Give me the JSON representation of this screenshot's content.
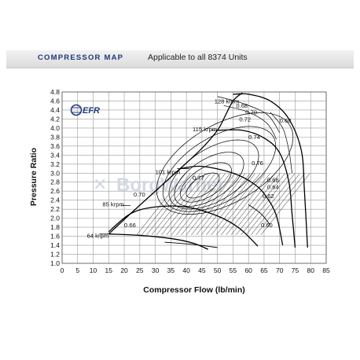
{
  "header": {
    "title": "COMPRESSOR MAP",
    "subtitle": "Applicable to all 8374 Units"
  },
  "icons": {
    "logo": "efr-logo",
    "watermark": "borgwarner-watermark"
  },
  "logo_text": "EFR",
  "watermark_text": "BorgWarner",
  "colors": {
    "title": "#1e3a78",
    "line": "#000000",
    "grid": "#9a9a9a",
    "watermark": "#d4d9e1"
  },
  "chart_data": {
    "type": "line",
    "title": "",
    "xlabel": "Compressor Flow (lb/min)",
    "ylabel": "Pressure Ratio",
    "xlim": [
      0,
      85
    ],
    "ylim": [
      1.0,
      4.8
    ],
    "xticks": [
      0,
      5,
      10,
      15,
      20,
      25,
      30,
      35,
      40,
      45,
      50,
      55,
      60,
      65,
      70,
      75,
      80,
      85
    ],
    "yticks": [
      1.0,
      1.2,
      1.4,
      1.6,
      1.8,
      2.0,
      2.2,
      2.4,
      2.6,
      2.8,
      3.0,
      3.2,
      3.4,
      3.6,
      3.8,
      4.0,
      4.2,
      4.4,
      4.6,
      4.8
    ],
    "grid": true,
    "surge_line": [
      [
        15,
        1.65
      ],
      [
        22,
        2.1
      ],
      [
        30,
        2.6
      ],
      [
        38,
        3.1
      ],
      [
        45,
        3.55
      ],
      [
        50,
        3.95
      ],
      [
        52,
        4.2
      ],
      [
        55,
        4.6
      ],
      [
        58,
        4.78
      ]
    ],
    "speed_lines": [
      {
        "label": "64 krpm",
        "points": [
          [
            15,
            1.65
          ],
          [
            25,
            1.62
          ],
          [
            35,
            1.55
          ],
          [
            42,
            1.45
          ],
          [
            47,
            1.31
          ]
        ]
      },
      {
        "label": "85 krpm",
        "points": [
          [
            15,
            1.7
          ],
          [
            22,
            2.1
          ],
          [
            30,
            2.25
          ],
          [
            40,
            2.25
          ],
          [
            50,
            2.05
          ],
          [
            57,
            1.78
          ],
          [
            63,
            1.38
          ]
        ]
      },
      {
        "label": "101 krpm",
        "points": [
          [
            38,
            3.1
          ],
          [
            45,
            3.15
          ],
          [
            55,
            3.0
          ],
          [
            62,
            2.75
          ],
          [
            66,
            2.45
          ],
          [
            69,
            2.05
          ],
          [
            71,
            1.4
          ]
        ]
      },
      {
        "label": "115 krpm",
        "points": [
          [
            50,
            3.95
          ],
          [
            58,
            3.95
          ],
          [
            65,
            3.78
          ],
          [
            70,
            3.45
          ],
          [
            73,
            2.8
          ],
          [
            74,
            2.1
          ],
          [
            75,
            1.35
          ]
        ]
      },
      {
        "label": "128 krpm",
        "points": [
          [
            55,
            4.75
          ],
          [
            60,
            4.75
          ],
          [
            67,
            4.6
          ],
          [
            73,
            4.2
          ],
          [
            77,
            3.5
          ],
          [
            78,
            2.6
          ],
          [
            79,
            1.35
          ]
        ]
      }
    ],
    "efficiency_labels": [
      "0.60",
      "0.62",
      "0.64",
      "0.66",
      "0.66",
      "0.68",
      "0.68",
      "0.70",
      "0.70",
      "0.72",
      "0.74",
      "0.76",
      "0.77"
    ]
  }
}
